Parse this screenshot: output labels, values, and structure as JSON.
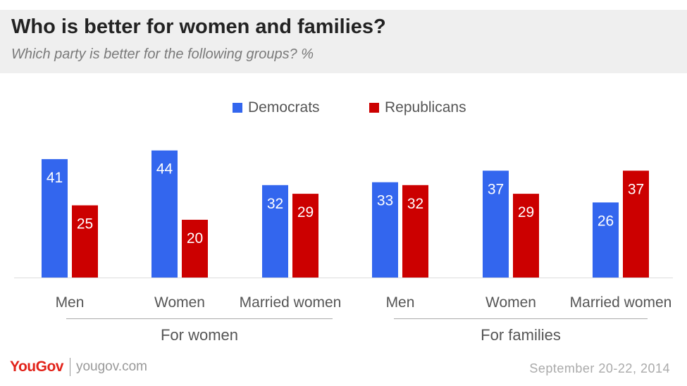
{
  "header": {
    "title": "Who is better for women and families?",
    "subtitle": "Which party is better for the following groups? %"
  },
  "footer": {
    "brand": "YouGov",
    "url": "yougov.com",
    "date": "September 20-22, 2014"
  },
  "colors": {
    "democrats": "#3366ee",
    "republicans": "#cc0000"
  },
  "chart_data": {
    "type": "bar",
    "categories": [
      "Men",
      "Women",
      "Married women",
      "Men",
      "Women",
      "Married women"
    ],
    "groups": [
      {
        "label": "For women",
        "categories": [
          0,
          1,
          2
        ]
      },
      {
        "label": "For families",
        "categories": [
          3,
          4,
          5
        ]
      }
    ],
    "series": [
      {
        "name": "Democrats",
        "values": [
          41,
          44,
          32,
          33,
          37,
          26
        ]
      },
      {
        "name": "Republicans",
        "values": [
          25,
          20,
          29,
          32,
          29,
          37
        ]
      }
    ],
    "legend_position": "top-center",
    "ylim": [
      0,
      50
    ],
    "grid": false
  }
}
